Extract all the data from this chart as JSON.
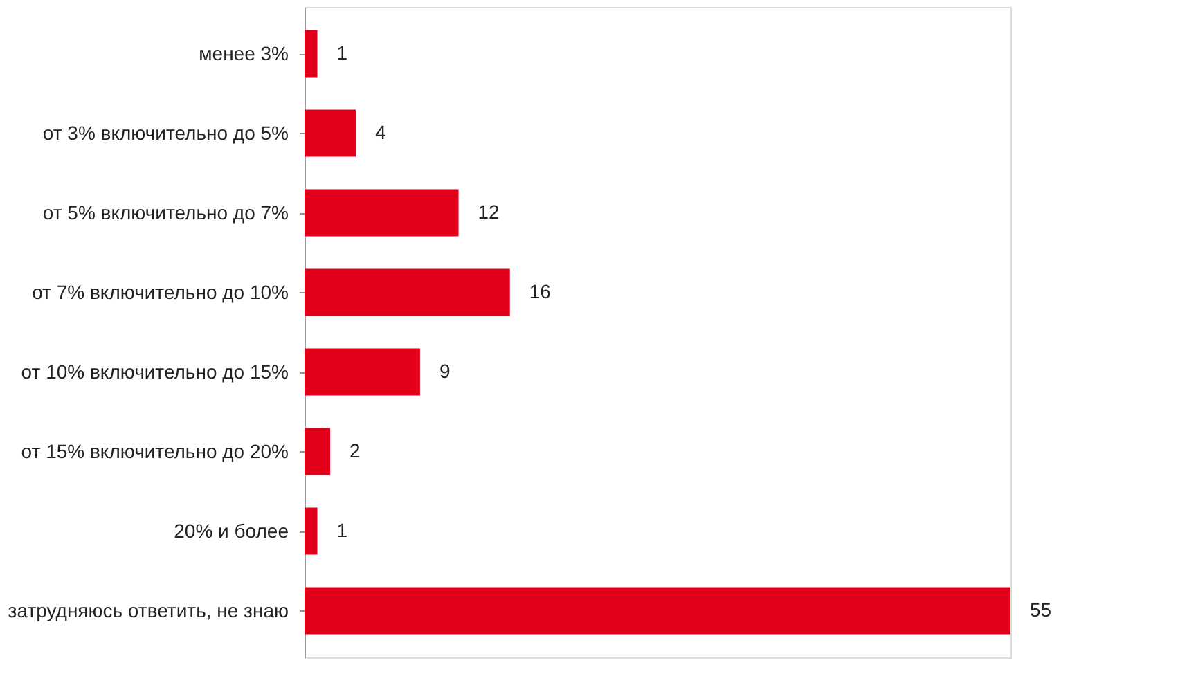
{
  "chart_data": {
    "type": "bar",
    "orientation": "horizontal",
    "categories": [
      "менее 3%",
      "от 3% включительно до 5%",
      "от 5% включительно до 7%",
      "от 7% включительно до 10%",
      "от 10% включительно до 15%",
      "от 15% включительно до 20%",
      "20% и более",
      "затрудняюсь ответить, не знаю"
    ],
    "values": [
      1,
      4,
      12,
      16,
      9,
      2,
      1,
      55
    ],
    "color": "#e2001a",
    "data_labels": true
  }
}
